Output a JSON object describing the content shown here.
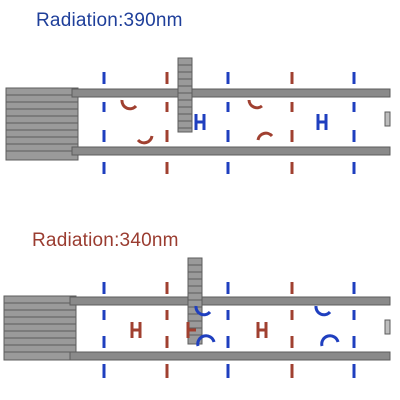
{
  "colors": {
    "blue": "#1f3fbf",
    "red": "#a04030",
    "rod": "#8a8a8a",
    "rod_edge": "#5c5c5c",
    "title_top": "#1f3f9a",
    "title_bottom": "#9a3c30"
  },
  "panels": [
    {
      "title": "Radiation:390nm",
      "state": "upper panel: ring shuttle near left of axle, blue elements mostly on lower side"
    },
    {
      "title": "Radiation:340nm",
      "state": "lower panel: ring shuttle shifted right, red elements mostly on upper side"
    }
  ]
}
